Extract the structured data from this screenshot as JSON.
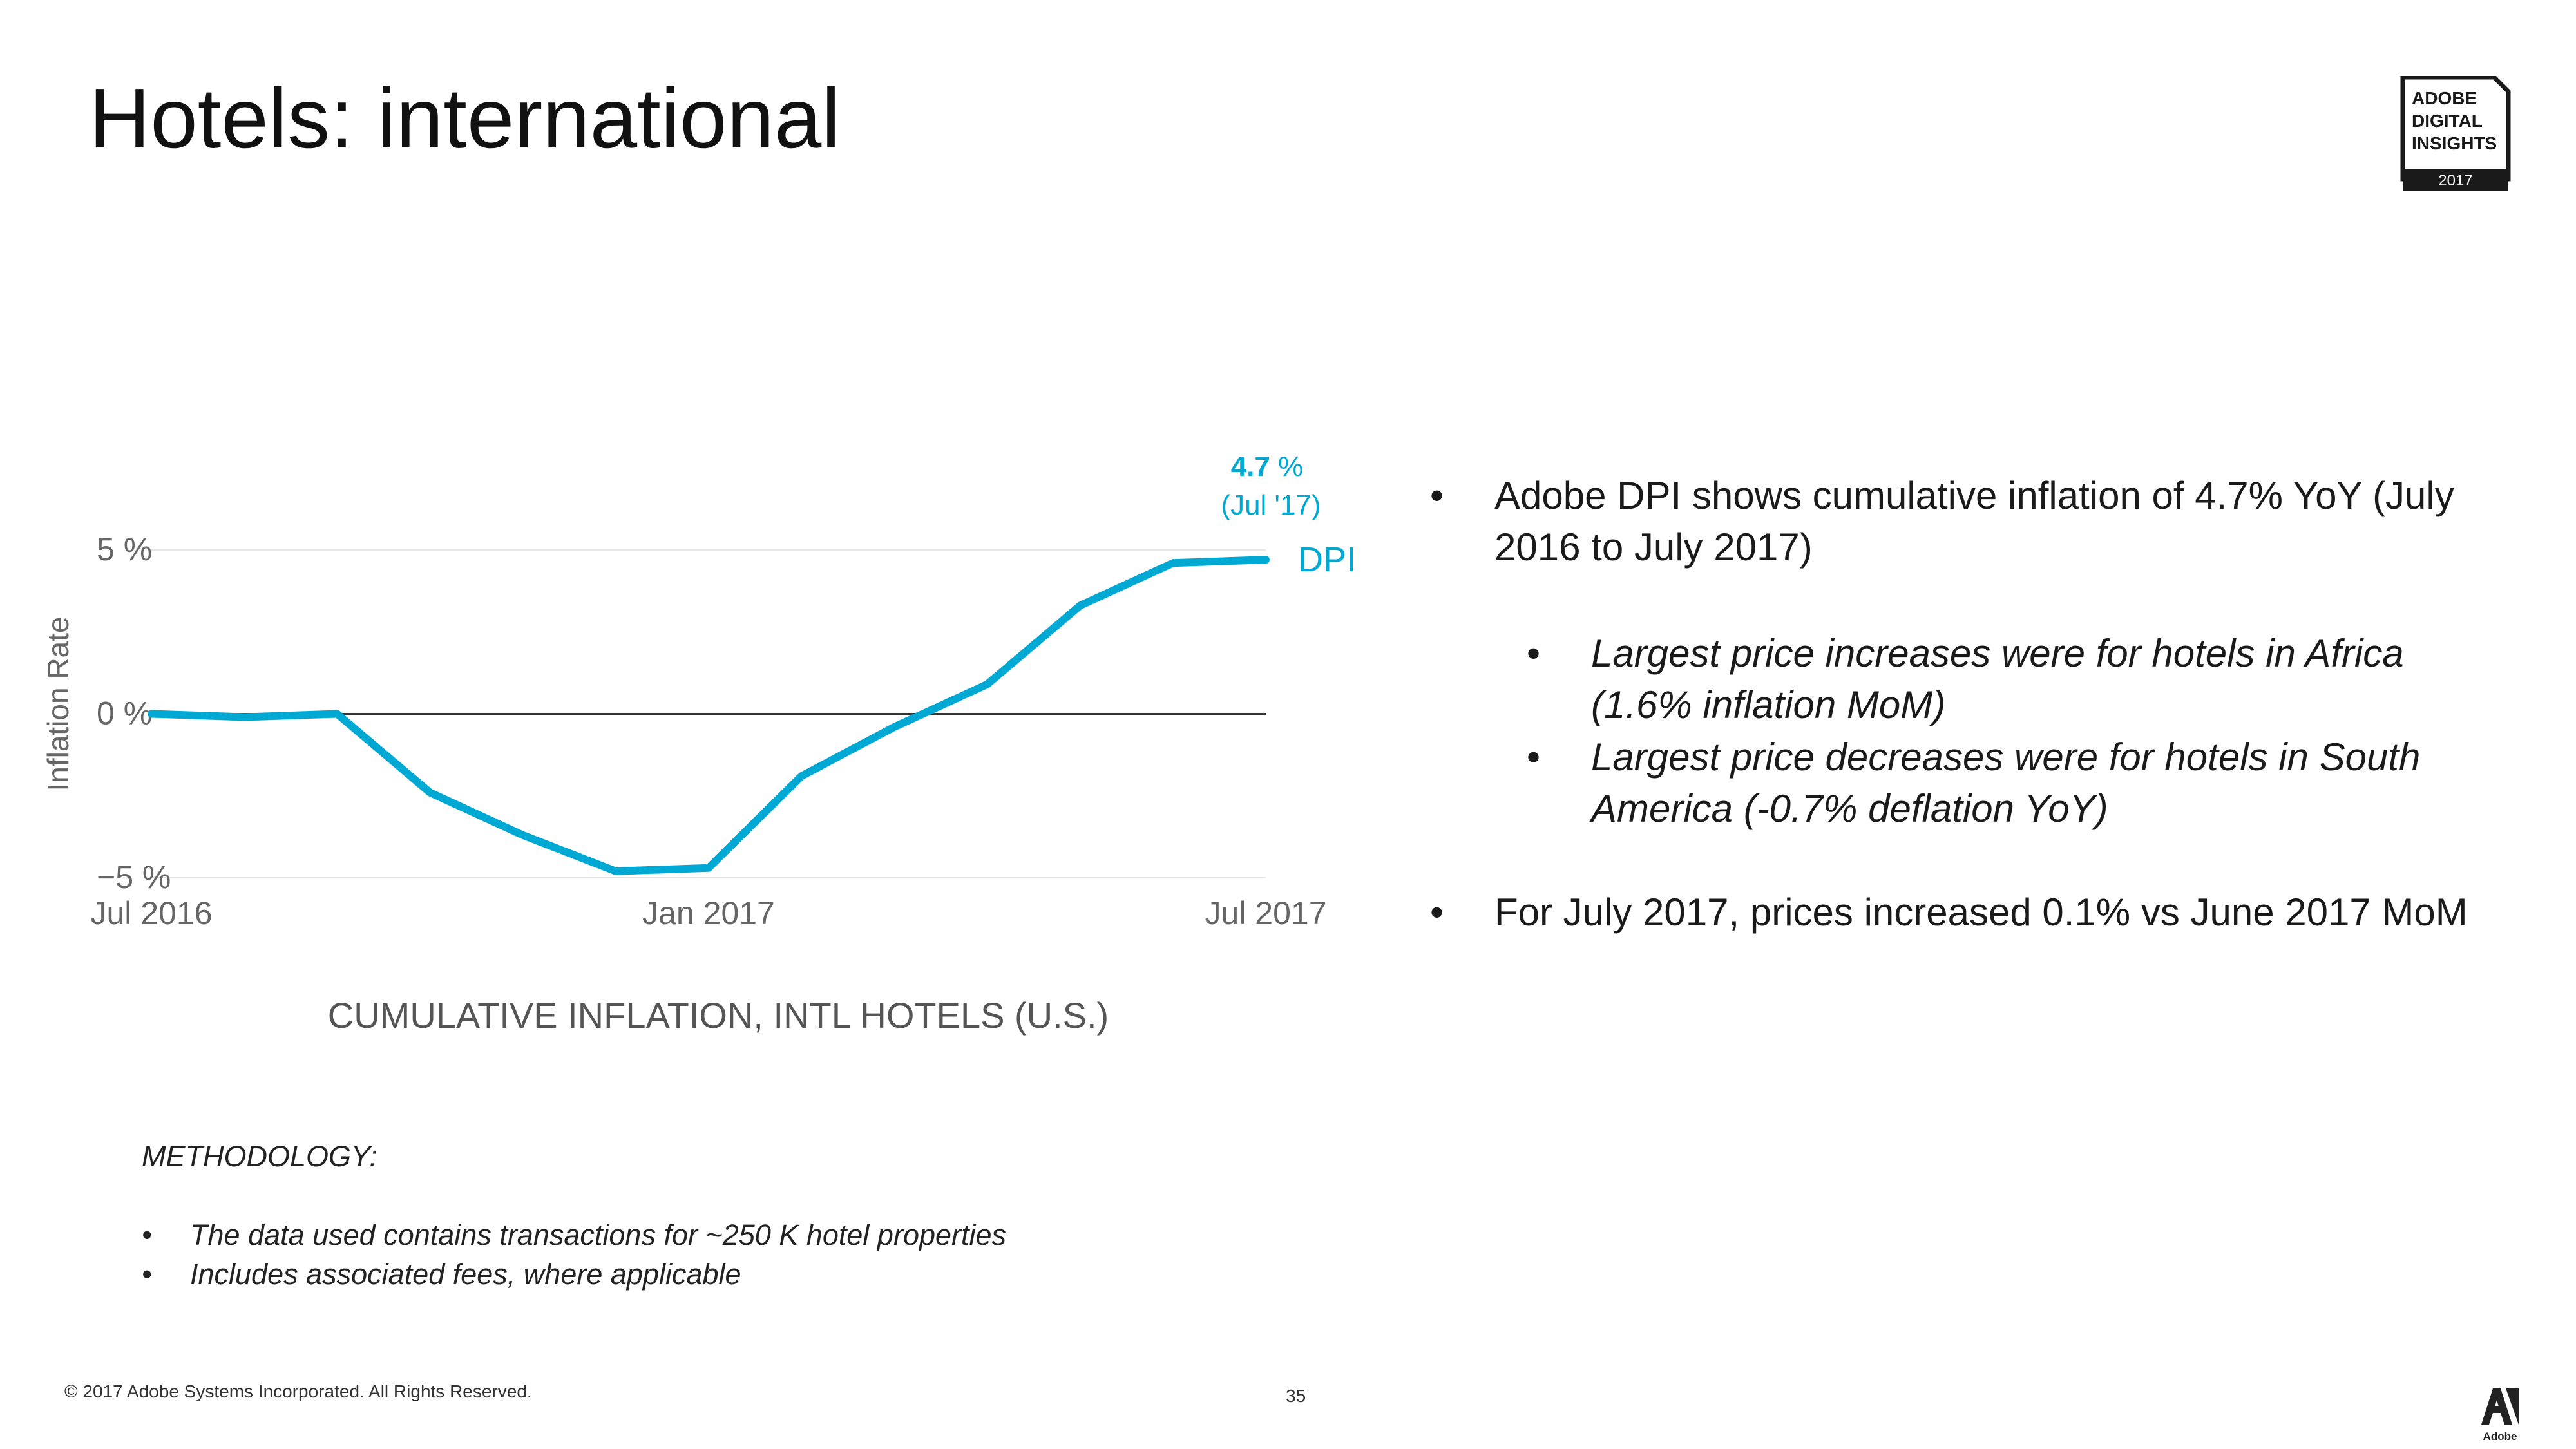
{
  "slide": {
    "title": "Hotels: international",
    "badge": {
      "line1": "ADOBE",
      "line2": "DIGITAL",
      "line3": "INSIGHTS",
      "year": "2017"
    },
    "footer": "© 2017 Adobe Systems Incorporated.  All Rights Reserved.",
    "page_number": "35",
    "adobe_logo_text": "Adobe",
    "bullets": [
      {
        "level": 1,
        "text": "Adobe DPI shows cumulative inflation of 4.7% YoY (July 2016 to July 2017)"
      },
      {
        "level": 2,
        "text": "Largest price increases were for hotels in Africa (1.6% inflation MoM)"
      },
      {
        "level": 2,
        "text": "Largest price decreases were for hotels in South America (-0.7% deflation YoY)"
      },
      {
        "level": 1,
        "text": "For July 2017, prices increased 0.1% vs June 2017 MoM"
      }
    ],
    "methodology": {
      "heading": "METHODOLOGY:",
      "items": [
        "The data used contains transactions for ~250 K hotel properties",
        "Includes associated fees, where applicable"
      ]
    },
    "bullet_symbol": "•"
  },
  "chart_data": {
    "type": "line",
    "title": "CUMULATIVE INFLATION, INTL HOTELS (U.S.)",
    "xlabel": "",
    "ylabel": "Inflation Rate",
    "ylim": [
      -5,
      6
    ],
    "yticks": [
      {
        "value": 5,
        "label": "5 %"
      },
      {
        "value": 0,
        "label": "0 %"
      },
      {
        "value": -5,
        "label": "−5 %"
      }
    ],
    "xticks": [
      {
        "index": 0,
        "label": "Jul 2016"
      },
      {
        "index": 6,
        "label": "Jan 2017"
      },
      {
        "index": 12,
        "label": "Jul 2017"
      }
    ],
    "x": [
      "Jul 2016",
      "Aug 2016",
      "Sep 2016",
      "Oct 2016",
      "Nov 2016",
      "Dec 2016",
      "Jan 2017",
      "Feb 2017",
      "Mar 2017",
      "Apr 2017",
      "May 2017",
      "Jun 2017",
      "Jul 2017"
    ],
    "series": [
      {
        "name": "DPI",
        "color": "#00a9d4",
        "values": [
          0.0,
          -0.1,
          0.0,
          -2.4,
          -3.7,
          -4.8,
          -4.7,
          -1.9,
          -0.4,
          0.9,
          3.3,
          4.6,
          4.7
        ]
      }
    ],
    "annotation": {
      "index": 12,
      "value_text": "4.7",
      "unit": " %",
      "date_text": "(Jul '17)"
    },
    "legend": "right",
    "grid": true,
    "zero_line_color": "#333333",
    "grid_color": "#e4e4e4",
    "tick_color": "#666666"
  }
}
